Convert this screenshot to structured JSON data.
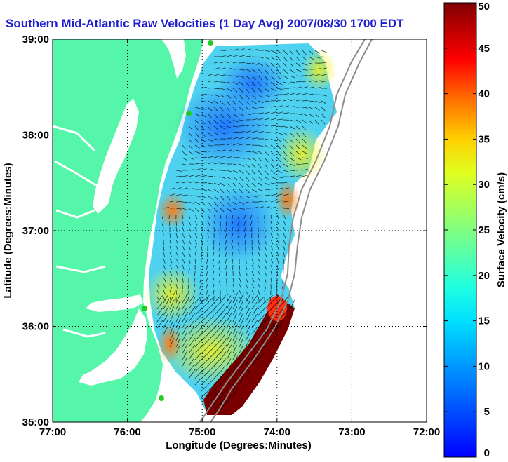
{
  "title": "Southern Mid-Atlantic Raw Velocities (1 Day Avg) 2007/08/30 1700 EDT",
  "map": {
    "xlabel": "Longitude (Degrees:Minutes)",
    "ylabel": "Latitude (Degrees:Minutes)",
    "lon_range": [
      -77,
      -72
    ],
    "lat_range": [
      35,
      39
    ],
    "x_ticks": [
      "77:00",
      "76:00",
      "75:00",
      "74:00",
      "73:00",
      "72:00"
    ],
    "y_ticks": [
      "35:00",
      "36:00",
      "37:00",
      "38:00",
      "39:00"
    ],
    "land_color": "#55f5aa",
    "grid": true
  },
  "colorbar": {
    "label": "Surface Velocity (cm/s)",
    "min": 0,
    "max": 50,
    "ticks": [
      "0",
      "5",
      "10",
      "15",
      "20",
      "25",
      "30",
      "35",
      "40",
      "45",
      "50"
    ],
    "colormap": "jet"
  }
}
